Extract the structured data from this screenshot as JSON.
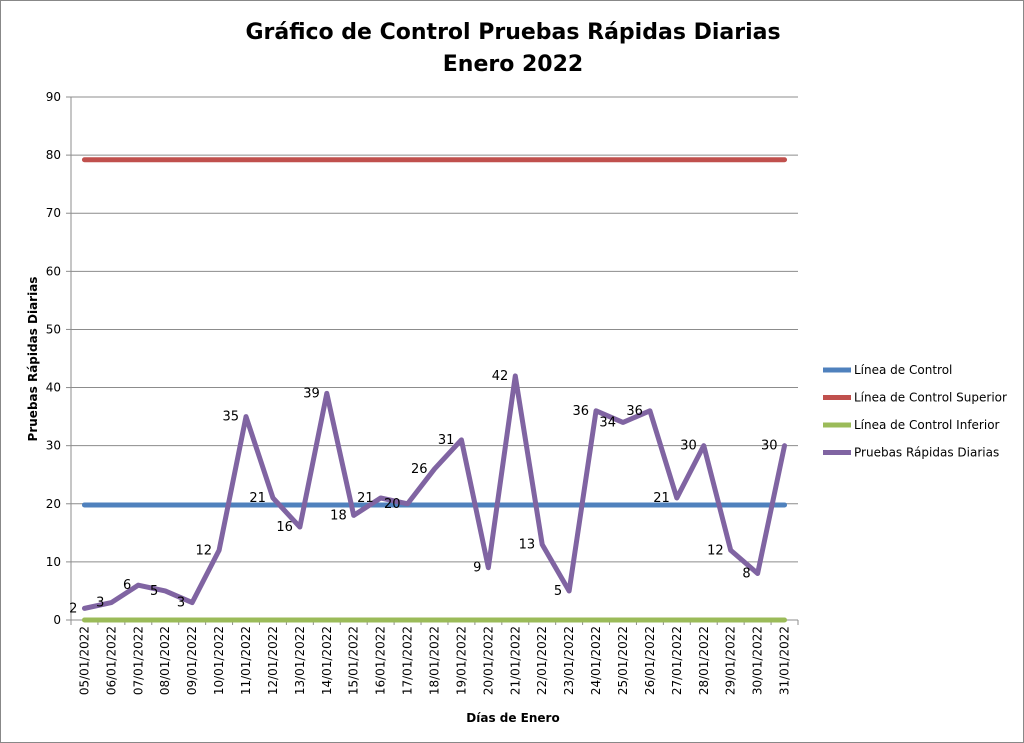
{
  "chart_data": {
    "type": "line",
    "title": [
      "Gráfico de Control Pruebas Rápidas Diarias",
      "Enero 2022"
    ],
    "xlabel": "Días de Enero",
    "ylabel": "Pruebas Rápidas Diarias",
    "ylim": [
      0,
      90
    ],
    "yticks": [
      "0",
      "10",
      "20",
      "30",
      "40",
      "50",
      "60",
      "70",
      "80",
      "90"
    ],
    "grid": true,
    "legend_position": "right",
    "categories": [
      "05/01/2022",
      "06/01/2022",
      "07/01/2022",
      "08/01/2022",
      "09/01/2022",
      "10/01/2022",
      "11/01/2022",
      "12/01/2022",
      "13/01/2022",
      "14/01/2022",
      "15/01/2022",
      "16/01/2022",
      "17/01/2022",
      "18/01/2022",
      "19/01/2022",
      "20/01/2022",
      "21/01/2022",
      "22/01/2022",
      "23/01/2022",
      "24/01/2022",
      "25/01/2022",
      "26/01/2022",
      "27/01/2022",
      "28/01/2022",
      "29/01/2022",
      "30/01/2022",
      "31/01/2022"
    ],
    "series": [
      {
        "name": "Línea de Control",
        "color": "#4F81BD",
        "constant": 19.8
      },
      {
        "name": "Línea de Control Superior",
        "color": "#C0504D",
        "constant": 79.2
      },
      {
        "name": "Línea de Control Inferior",
        "color": "#9BBB59",
        "constant": 0
      },
      {
        "name": "Pruebas Rápidas Diarias",
        "color": "#8064A2",
        "data_labels": true,
        "values": [
          2,
          3,
          6,
          5,
          3,
          12,
          35,
          21,
          16,
          39,
          18,
          21,
          20,
          26,
          31,
          9,
          42,
          13,
          5,
          36,
          34,
          36,
          21,
          30,
          12,
          8,
          30
        ]
      }
    ]
  }
}
